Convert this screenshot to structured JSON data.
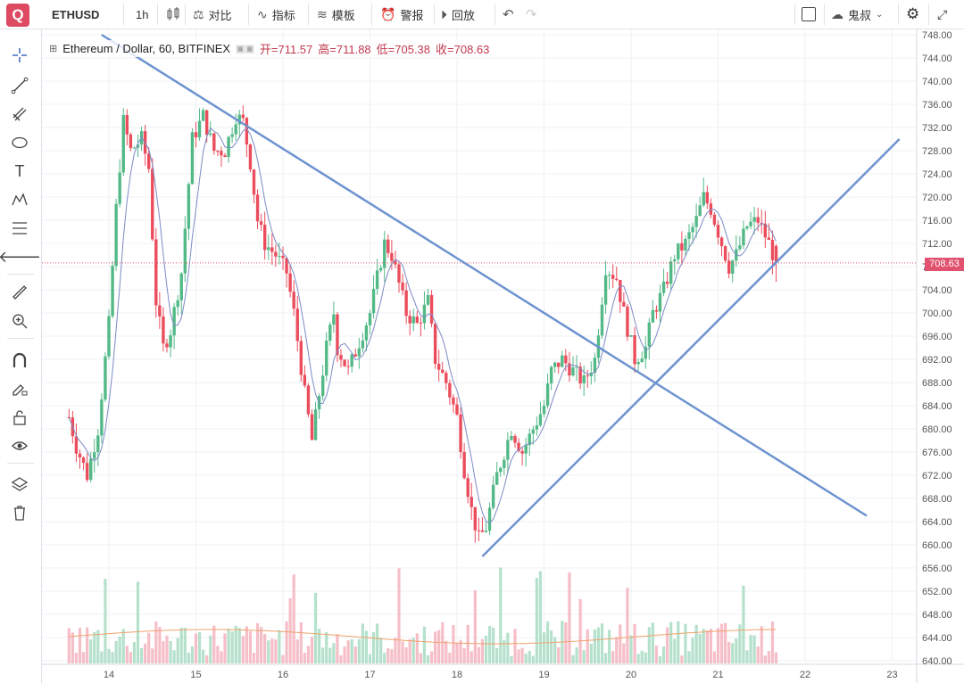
{
  "toolbar": {
    "logo": "Q",
    "symbol": "ETHUSD",
    "interval": "1h",
    "compare_label": "对比",
    "indicators_label": "指标",
    "templates_label": "模板",
    "alert_label": "警报",
    "replay_label": "回放",
    "cloud_label": "鬼叔"
  },
  "legend": {
    "title": "Ethereum / Dollar, 60, BITFINEX",
    "open": "开=711.57",
    "high": "高=711.88",
    "low": "低=705.38",
    "close": "收=708.63"
  },
  "sidebar": {
    "tools": [
      "crosshair-icon",
      "trendline-icon",
      "pitchfork-icon",
      "shape-icon",
      "text-icon",
      "pattern-icon",
      "fib-icon",
      "back-arrow-icon",
      "ruler-icon",
      "zoom-icon",
      "magnet-icon",
      "lock-draw-icon",
      "lock-icon",
      "eye-icon",
      "layers-icon",
      "trash-icon"
    ]
  },
  "colors": {
    "up": "#53b987",
    "down": "#eb4d5c",
    "trend": "#6d93cf",
    "accent": "#dd4a62"
  },
  "chart_data": {
    "type": "candlestick",
    "symbol": "ETHUSD",
    "last_price": "708.63",
    "y_ticks": [
      "748.00",
      "744.00",
      "740.00",
      "736.00",
      "732.00",
      "728.00",
      "724.00",
      "720.00",
      "716.00",
      "712.00",
      "708.00",
      "704.00",
      "700.00",
      "696.00",
      "692.00",
      "688.00",
      "684.00",
      "680.00",
      "676.00",
      "672.00",
      "668.00",
      "664.00",
      "660.00",
      "656.00",
      "652.00",
      "648.00",
      "644.00",
      "640.00"
    ],
    "x_ticks": [
      "14",
      "15",
      "16",
      "17",
      "18",
      "19",
      "20",
      "21",
      "22",
      "23"
    ],
    "ylim": [
      640,
      748
    ],
    "trendlines": [
      {
        "name": "descending",
        "from": [
          "13 22:00",
          748
        ],
        "to": [
          "22 17:00",
          665
        ]
      },
      {
        "name": "ascending",
        "from": [
          "18 07:00",
          658
        ],
        "to": [
          "23 02:00",
          730
        ]
      }
    ],
    "waypoints": [
      [
        "13 13:00",
        682
      ],
      [
        "13 15:00",
        677
      ],
      [
        "13 18:00",
        672
      ],
      [
        "13 21:00",
        680
      ],
      [
        "14 00:00",
        698
      ],
      [
        "14 02:00",
        718
      ],
      [
        "14 04:00",
        733
      ],
      [
        "14 06:00",
        728
      ],
      [
        "14 09:00",
        730
      ],
      [
        "14 11:00",
        725
      ],
      [
        "14 13:00",
        702
      ],
      [
        "14 15:00",
        694
      ],
      [
        "14 17:00",
        697
      ],
      [
        "14 20:00",
        707
      ],
      [
        "14 23:00",
        730
      ],
      [
        "15 02:00",
        734
      ],
      [
        "15 05:00",
        728
      ],
      [
        "15 08:00",
        728
      ],
      [
        "15 11:00",
        734
      ],
      [
        "15 13:00",
        733
      ],
      [
        "15 15:00",
        726
      ],
      [
        "15 17:00",
        716
      ],
      [
        "15 19:00",
        712
      ],
      [
        "15 22:00",
        710
      ],
      [
        "16 01:00",
        707
      ],
      [
        "16 03:00",
        700
      ],
      [
        "16 06:00",
        686
      ],
      [
        "16 08:00",
        678
      ],
      [
        "16 10:00",
        686
      ],
      [
        "16 12:00",
        694
      ],
      [
        "16 14:00",
        700
      ],
      [
        "16 15:00",
        694
      ],
      [
        "16 18:00",
        690
      ],
      [
        "16 21:00",
        695
      ],
      [
        "17 00:00",
        700
      ],
      [
        "17 02:00",
        706
      ],
      [
        "17 04:00",
        712
      ],
      [
        "17 06:00",
        710
      ],
      [
        "17 08:00",
        705
      ],
      [
        "17 10:00",
        700
      ],
      [
        "17 13:00",
        698
      ],
      [
        "17 16:00",
        702
      ],
      [
        "17 18:00",
        692
      ],
      [
        "17 21:00",
        688
      ],
      [
        "18 00:00",
        682
      ],
      [
        "18 02:00",
        673
      ],
      [
        "18 04:00",
        666
      ],
      [
        "18 06:00",
        661
      ],
      [
        "18 08:00",
        663
      ],
      [
        "18 11:00",
        672
      ],
      [
        "18 13:00",
        676
      ],
      [
        "18 15:00",
        680
      ],
      [
        "18 18:00",
        676
      ],
      [
        "18 21:00",
        680
      ],
      [
        "19 00:00",
        684
      ],
      [
        "19 02:00",
        690
      ],
      [
        "19 05:00",
        692
      ],
      [
        "19 08:00",
        690
      ],
      [
        "19 11:00",
        688
      ],
      [
        "19 14:00",
        692
      ],
      [
        "19 17:00",
        708
      ],
      [
        "19 20:00",
        706
      ],
      [
        "19 22:00",
        700
      ],
      [
        "20 01:00",
        692
      ],
      [
        "20 04:00",
        694
      ],
      [
        "20 06:00",
        700
      ],
      [
        "20 09:00",
        704
      ],
      [
        "20 12:00",
        710
      ],
      [
        "20 15:00",
        712
      ],
      [
        "20 18:00",
        716
      ],
      [
        "20 20:00",
        720
      ],
      [
        "20 22:00",
        718
      ],
      [
        "21 01:00",
        712
      ],
      [
        "21 03:00",
        708
      ],
      [
        "21 05:00",
        710
      ],
      [
        "21 08:00",
        715
      ],
      [
        "21 11:00",
        716
      ],
      [
        "21 14:00",
        712
      ],
      [
        "21 16:00",
        708.63
      ]
    ]
  }
}
